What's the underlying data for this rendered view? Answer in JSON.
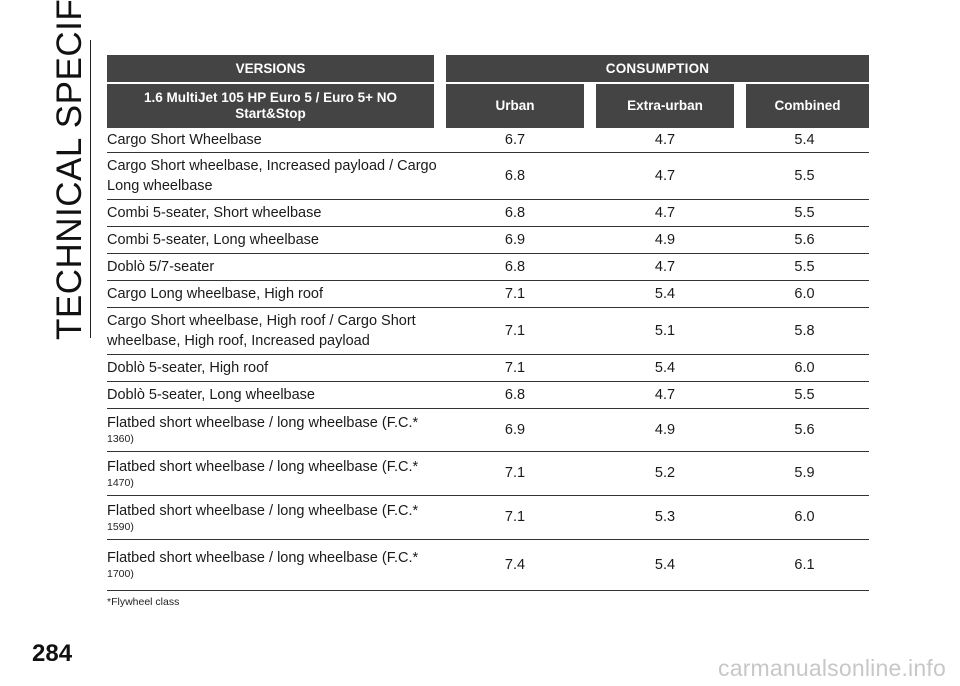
{
  "side_title": "TECHNICAL SPECIFICATIONS",
  "table": {
    "head_versions": "VERSIONS",
    "head_consumption": "CONSUMPTION",
    "engine_label": "1.6 MultiJet 105 HP Euro 5 / Euro 5+ NO Start&Stop",
    "col_urban": "Urban",
    "col_extra_urban": "Extra-urban",
    "col_combined": "Combined",
    "rows": [
      {
        "version": "Cargo Short Wheelbase",
        "fc": "",
        "urban": "6.7",
        "extra": "4.7",
        "combined": "5.4"
      },
      {
        "version": "Cargo Short wheelbase, Increased payload / Cargo Long wheelbase",
        "fc": "",
        "urban": "6.8",
        "extra": "4.7",
        "combined": "5.5"
      },
      {
        "version": "Combi 5-seater, Short wheelbase",
        "fc": "",
        "urban": "6.8",
        "extra": "4.7",
        "combined": "5.5"
      },
      {
        "version": "Combi 5-seater, Long wheelbase",
        "fc": "",
        "urban": "6.9",
        "extra": "4.9",
        "combined": "5.6"
      },
      {
        "version": "Doblò 5/7-seater",
        "fc": "",
        "urban": "6.8",
        "extra": "4.7",
        "combined": "5.5"
      },
      {
        "version": "Cargo Long wheelbase, High roof",
        "fc": "",
        "urban": "7.1",
        "extra": "5.4",
        "combined": "6.0"
      },
      {
        "version": "Cargo Short wheelbase, High roof / Cargo Short wheelbase, High roof, Increased payload",
        "fc": "",
        "urban": "7.1",
        "extra": "5.1",
        "combined": "5.8"
      },
      {
        "version": "Doblò 5-seater, High roof",
        "fc": "",
        "urban": "7.1",
        "extra": "5.4",
        "combined": "6.0"
      },
      {
        "version": "Doblò 5-seater, Long wheelbase",
        "fc": "",
        "urban": "6.8",
        "extra": "4.7",
        "combined": "5.5"
      },
      {
        "version": "Flatbed short wheelbase / long wheelbase (F.C.*",
        "fc": "1360)",
        "urban": "6.9",
        "extra": "4.9",
        "combined": "5.6"
      },
      {
        "version": "Flatbed short wheelbase / long wheelbase (F.C.*",
        "fc": "1470)",
        "urban": "7.1",
        "extra": "5.2",
        "combined": "5.9"
      },
      {
        "version": "Flatbed short wheelbase / long wheelbase (F.C.*",
        "fc": "1590)",
        "urban": "7.1",
        "extra": "5.3",
        "combined": "6.0"
      },
      {
        "version": "Flatbed short wheelbase / long wheelbase (F.C.*",
        "fc": "1700)",
        "urban": "7.4",
        "extra": "5.4",
        "combined": "6.1"
      }
    ]
  },
  "footnote": "*Flywheel class",
  "page_number": "284",
  "watermark": "carmanualsonline.info"
}
